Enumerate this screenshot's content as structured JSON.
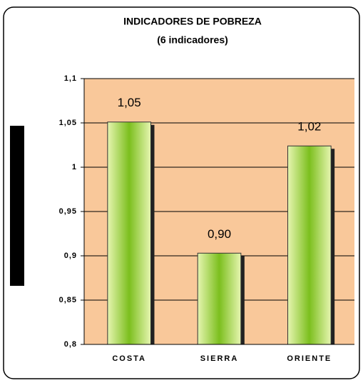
{
  "chart_data": {
    "type": "bar",
    "title": "INDICADORES DE POBREZA",
    "subtitle": "(6 indicadores)",
    "categories": [
      "COSTA",
      "SIERRA",
      "ORIENTE"
    ],
    "values": [
      1.051,
      0.903,
      1.024
    ],
    "value_labels": [
      "1,05",
      "0,90",
      "1,02"
    ],
    "color": "#8cc63f",
    "ylim": [
      0.8,
      1.1
    ],
    "yticks": [
      {
        "value": 0.8,
        "label": "0,8"
      },
      {
        "value": 0.85,
        "label": "0,85"
      },
      {
        "value": 0.9,
        "label": "0,9"
      },
      {
        "value": 0.95,
        "label": "0,95"
      },
      1,
      {
        "value": 1.05,
        "label": "1,05"
      },
      {
        "value": 1.1,
        "label": "1,1"
      }
    ],
    "grid": true
  }
}
